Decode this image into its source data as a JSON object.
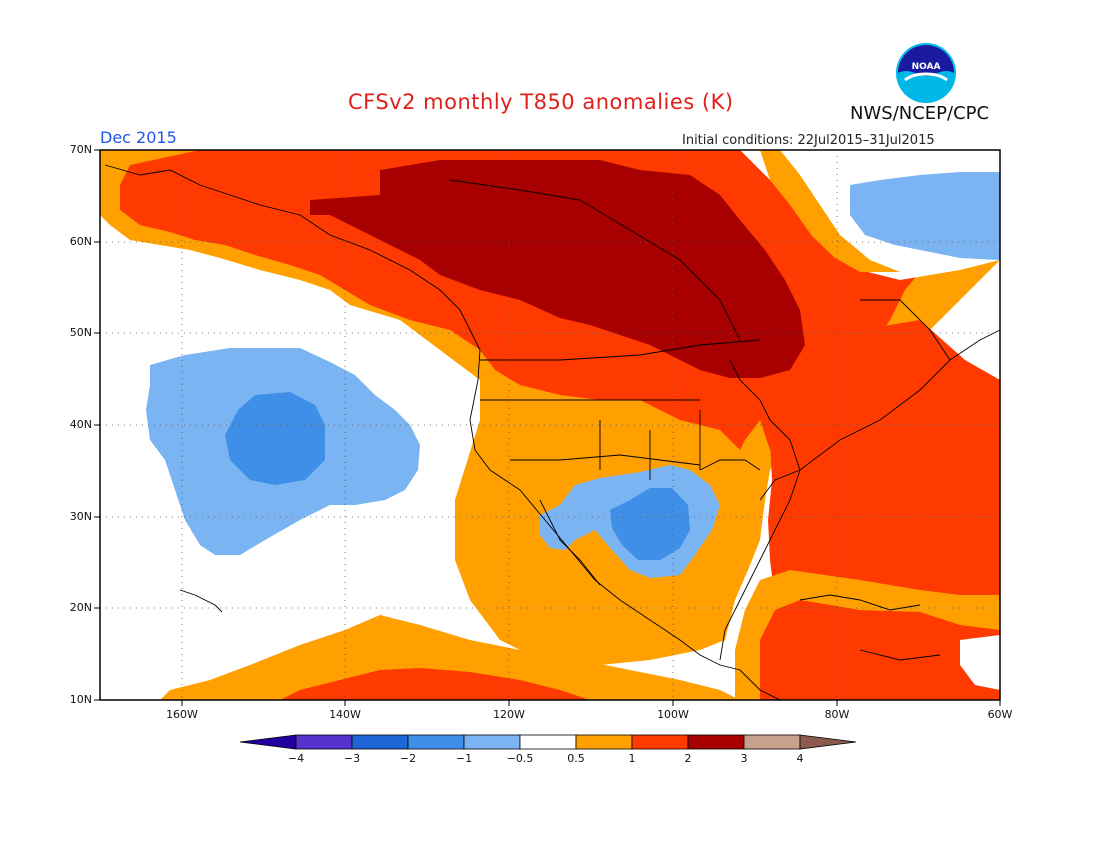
{
  "title": "CFSv2 monthly T850 anomalies (K)",
  "agency": "NWS/NCEP/CPC",
  "logo_text": "NOAA",
  "valid_month": "Dec 2015",
  "initial_conditions": "Initial conditions: 22Jul2015–31Jul2015",
  "map": {
    "lon_range": [
      -172,
      -60
    ],
    "lat_range": [
      10,
      70
    ],
    "lat_labels": [
      "70N",
      "60N",
      "50N",
      "40N",
      "30N",
      "20N",
      "10N"
    ],
    "lon_labels": [
      "160W",
      "140W",
      "120W",
      "100W",
      "80W",
      "60W"
    ]
  },
  "colorbar": {
    "labels": [
      "−4",
      "−3",
      "−2",
      "−1",
      "−0.5",
      "0.5",
      "1",
      "2",
      "3",
      "4"
    ],
    "colors": [
      "#2200a0",
      "#5533cc",
      "#1e66d6",
      "#3f8fe8",
      "#7ab4f2",
      "#ffffff",
      "#ffa000",
      "#ff3a00",
      "#a80000",
      "#c8a08c",
      "#8a5a4a"
    ]
  }
}
